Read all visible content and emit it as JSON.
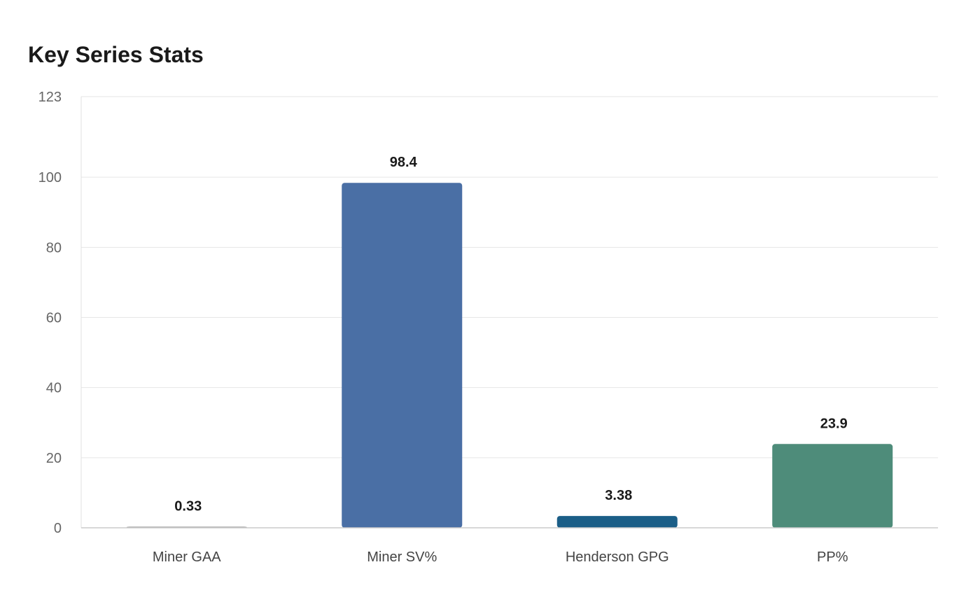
{
  "chart_data": {
    "type": "bar",
    "title": "Key Series Stats",
    "xlabel": "",
    "ylabel": "",
    "categories": [
      "Miner GAA",
      "Miner SV%",
      "Henderson GPG",
      "PP%"
    ],
    "values": [
      0.33,
      98.4,
      3.38,
      23.9
    ],
    "value_labels": [
      "0.33",
      "98.4",
      "3.38",
      "23.9"
    ],
    "colors": [
      "#9a9a9a",
      "#4a6fa5",
      "#1b5e87",
      "#4e8c7a"
    ],
    "ylim": [
      0,
      123
    ],
    "yticks": [
      0,
      20,
      40,
      60,
      80,
      100,
      123
    ],
    "grid": true,
    "legend": "none"
  }
}
